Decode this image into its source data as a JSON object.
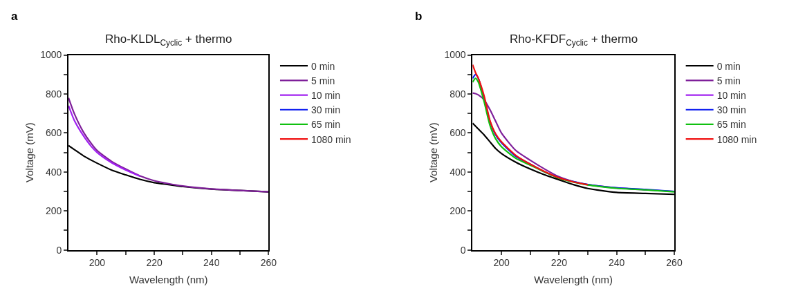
{
  "chart_data": [
    {
      "type": "line",
      "title": "Rho-KLDL$_{Cyclic}$ + thermo",
      "xlabel": "Wavelength (nm)",
      "ylabel": "Voltage (mV)",
      "annotations": [
        "a"
      ],
      "x": [
        190,
        192,
        195,
        198,
        200,
        205,
        210,
        215,
        220,
        225,
        230,
        240,
        250,
        260
      ],
      "series": [
        {
          "name": "0 min",
          "color": "#000000",
          "values": [
            535,
            515,
            485,
            460,
            445,
            410,
            385,
            362,
            345,
            335,
            325,
            312,
            305,
            298
          ]
        },
        {
          "name": "5 min",
          "color": "#7f1f9a",
          "values": [
            780,
            700,
            610,
            545,
            510,
            455,
            415,
            380,
            355,
            340,
            328,
            313,
            305,
            298
          ]
        },
        {
          "name": "10 min",
          "color": "#a020f0",
          "values": [
            740,
            665,
            590,
            530,
            500,
            448,
            410,
            378,
            null,
            null,
            null,
            null,
            null,
            null
          ]
        },
        {
          "name": "30 min",
          "color": "#0a1af0",
          "values": [
            null,
            null,
            null,
            null,
            null,
            null,
            null,
            null,
            null,
            null,
            null,
            null,
            null,
            null
          ]
        },
        {
          "name": "65 min",
          "color": "#10c010",
          "values": [
            null,
            null,
            null,
            null,
            null,
            null,
            null,
            null,
            null,
            null,
            null,
            null,
            null,
            null
          ]
        },
        {
          "name": "1080 min",
          "color": "#f01010",
          "values": [
            null,
            null,
            null,
            null,
            null,
            null,
            null,
            null,
            null,
            null,
            null,
            null,
            null,
            null
          ]
        }
      ],
      "xlim": [
        190,
        260
      ],
      "xticks": [
        200,
        {
          "value": 210,
          "label": null
        },
        220,
        {
          "value": 230,
          "label": null
        },
        240,
        {
          "value": 250,
          "label": null
        },
        260
      ],
      "ylim": [
        0,
        1000
      ],
      "yticks": [
        0,
        {
          "value": 100,
          "label": null
        },
        200,
        {
          "value": 300,
          "label": null
        },
        400,
        {
          "value": 500,
          "label": null
        },
        600,
        {
          "value": 700,
          "label": null
        },
        800,
        {
          "value": 900,
          "label": null
        },
        1000
      ],
      "legend": "right",
      "line_style": "solid",
      "marker": "none"
    },
    {
      "type": "line",
      "title": "Rho-KFDF$_{Cyclic}$ + thermo",
      "xlabel": "Wavelength (nm)",
      "ylabel": "Voltage (mV)",
      "annotations": [
        "b"
      ],
      "x": [
        190,
        191,
        192,
        194,
        196,
        198,
        200,
        205,
        210,
        215,
        220,
        225,
        230,
        240,
        250,
        260
      ],
      "series": [
        {
          "name": "0 min",
          "color": "#000000",
          "values": [
            650,
            635,
            620,
            590,
            555,
            520,
            495,
            450,
            415,
            385,
            360,
            335,
            315,
            295,
            290,
            285
          ]
        },
        {
          "name": "5 min",
          "color": "#7f1f9a",
          "values": [
            805,
            802,
            795,
            770,
            720,
            660,
            600,
            510,
            460,
            415,
            375,
            350,
            335,
            318,
            308,
            300
          ]
        },
        {
          "name": "10 min",
          "color": "#a020f0",
          "values": [
            null,
            null,
            null,
            null,
            null,
            null,
            null,
            null,
            null,
            null,
            null,
            null,
            null,
            null,
            null,
            null
          ]
        },
        {
          "name": "30 min",
          "color": "#0a1af0",
          "values": [
            880,
            900,
            880,
            780,
            660,
            590,
            550,
            480,
            440,
            400,
            370,
            350,
            335,
            318,
            310,
            300
          ]
        },
        {
          "name": "65 min",
          "color": "#10c010",
          "values": [
            860,
            880,
            860,
            760,
            640,
            570,
            530,
            470,
            435,
            400,
            368,
            348,
            333,
            316,
            308,
            298
          ]
        },
        {
          "name": "1080 min",
          "color": "#f01010",
          "values": [
            950,
            910,
            880,
            790,
            665,
            595,
            555,
            485,
            440,
            402,
            370,
            349,
            334,
            null,
            null,
            null
          ]
        }
      ],
      "xlim": [
        190,
        260
      ],
      "xticks": [
        200,
        {
          "value": 210,
          "label": null
        },
        220,
        {
          "value": 230,
          "label": null
        },
        240,
        {
          "value": 250,
          "label": null
        },
        260
      ],
      "ylim": [
        0,
        1000
      ],
      "yticks": [
        0,
        {
          "value": 100,
          "label": null
        },
        200,
        {
          "value": 300,
          "label": null
        },
        400,
        {
          "value": 500,
          "label": null
        },
        600,
        {
          "value": 700,
          "label": null
        },
        800,
        {
          "value": 900,
          "label": null
        },
        1000
      ],
      "legend": "right",
      "line_style": "solid",
      "marker": "none"
    }
  ]
}
